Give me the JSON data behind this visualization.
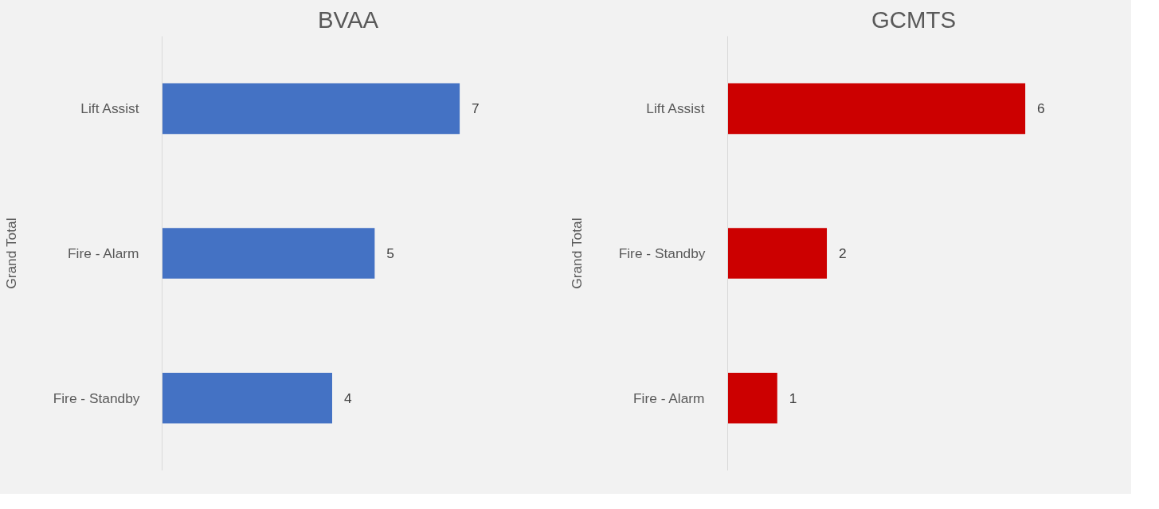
{
  "chart_data": [
    {
      "type": "bar",
      "title": "BVAA",
      "ylabel": "Grand Total",
      "orientation": "horizontal",
      "categories": [
        "Lift Assist",
        "Fire - Alarm",
        "Fire - Standby"
      ],
      "values": [
        7,
        5,
        4
      ],
      "color": "#4472c4",
      "data_labels": true,
      "grid": false,
      "tick_labels": "y"
    },
    {
      "type": "bar",
      "title": "GCMTS",
      "ylabel": "Grand Total",
      "orientation": "horizontal",
      "categories": [
        "Lift Assist",
        "Fire - Standby",
        "Fire - Alarm"
      ],
      "values": [
        6,
        2,
        1
      ],
      "color": "#cc0000",
      "data_labels": true,
      "grid": false,
      "tick_labels": "y"
    }
  ]
}
